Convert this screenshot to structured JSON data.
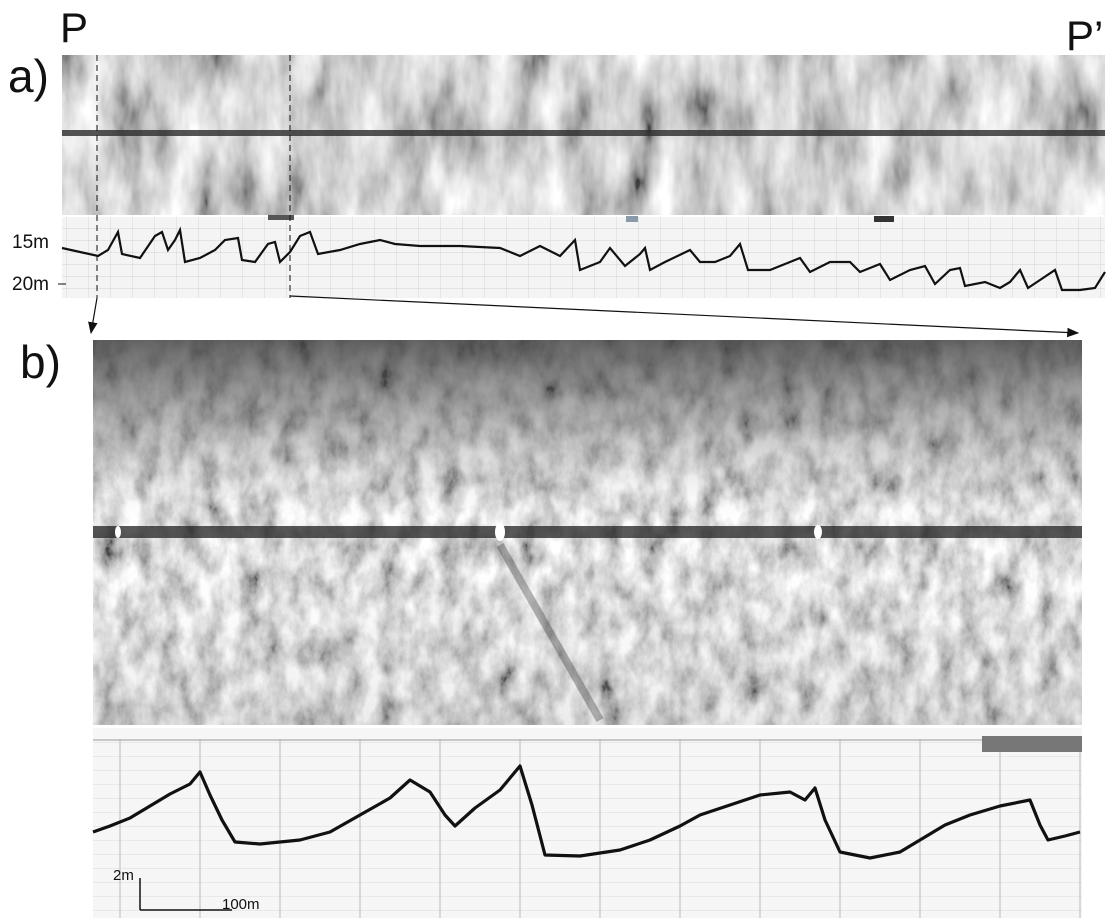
{
  "labels": {
    "start": "P",
    "end": "P’",
    "panel_a": "a)",
    "panel_b": "b)"
  },
  "depth_axis": {
    "upper": "15m",
    "lower": "20m"
  },
  "scale_bar": {
    "vertical": "2m",
    "horizontal": "100m"
  }
}
